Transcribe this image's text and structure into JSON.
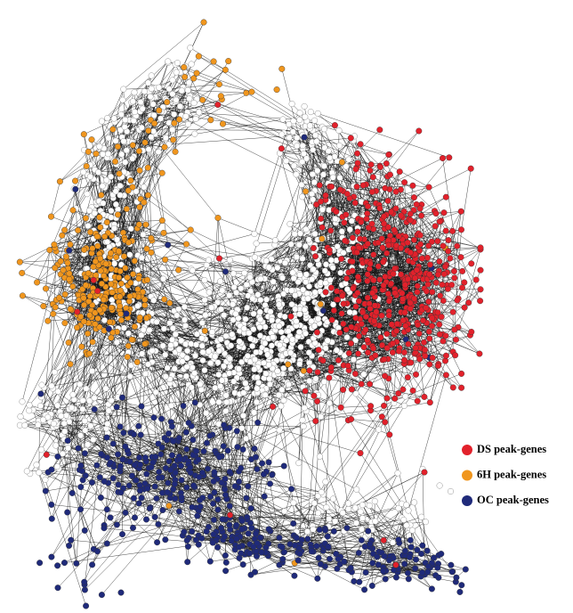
{
  "legend": [
    {
      "label": "DS peak-genes",
      "color": "#e2212b"
    },
    {
      "label": "6H peak-genes",
      "color": "#f0961e"
    },
    {
      "label": "OC peak-genes",
      "color": "#1f2a7a"
    }
  ]
}
